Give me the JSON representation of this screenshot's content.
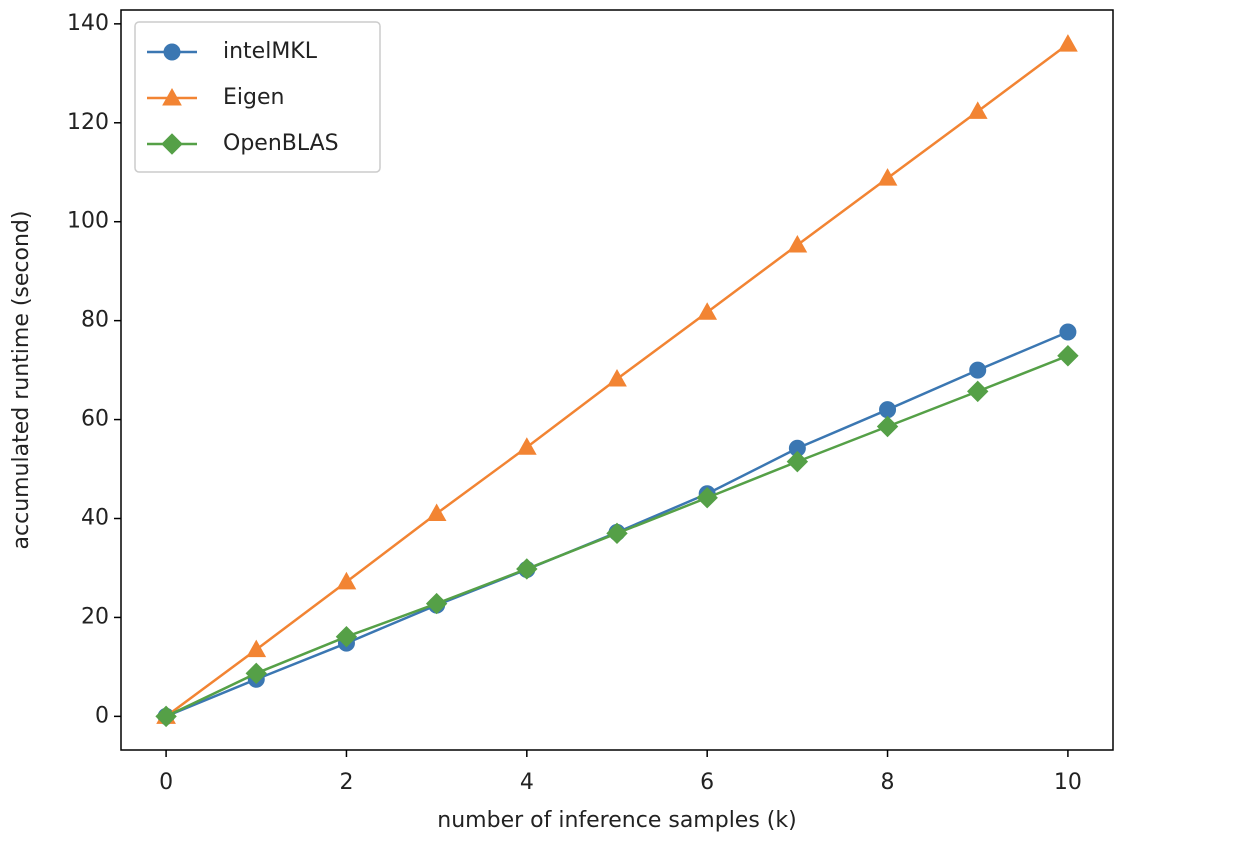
{
  "chart_data": {
    "type": "line",
    "xlabel": "number of inference samples (k)",
    "ylabel": "accumulated runtime (second)",
    "x": [
      0,
      1,
      2,
      3,
      4,
      5,
      6,
      7,
      8,
      9,
      10
    ],
    "series": [
      {
        "name": "intelMKL",
        "color": "#3b77b2",
        "marker": "circle",
        "values": [
          0,
          7.5,
          14.8,
          22.5,
          29.7,
          37.2,
          45,
          54.2,
          62,
          70,
          77.7
        ]
      },
      {
        "name": "Eigen",
        "color": "#f28433",
        "marker": "triangle",
        "values": [
          0,
          13.5,
          27.2,
          41,
          54.4,
          68.2,
          81.7,
          95.3,
          108.8,
          122.3,
          135.9
        ]
      },
      {
        "name": "OpenBLAS",
        "color": "#55a047",
        "marker": "diamond",
        "values": [
          0,
          8.7,
          16.1,
          22.8,
          29.8,
          37,
          44.2,
          51.5,
          58.6,
          65.7,
          72.9
        ]
      }
    ],
    "xlim": [
      -0.5,
      10.5
    ],
    "xticks": [
      0,
      2,
      4,
      6,
      8,
      10
    ],
    "ylim": [
      -6.8,
      142.8
    ],
    "yticks": [
      0,
      20,
      40,
      60,
      80,
      100,
      120,
      140
    ],
    "legend": "upper left"
  }
}
